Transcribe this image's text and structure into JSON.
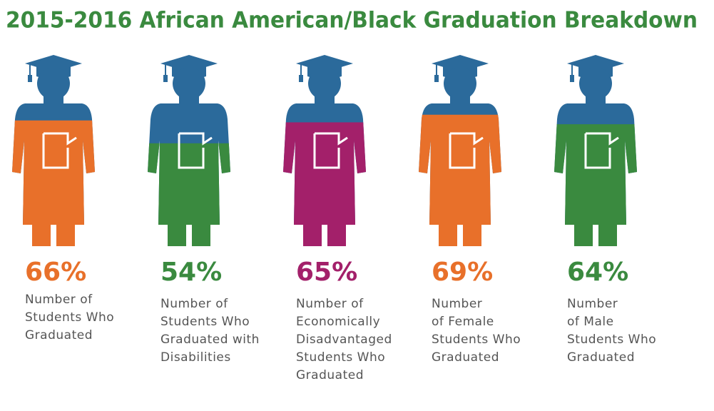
{
  "chart_data": {
    "type": "pictogram",
    "title": "2015-2016 African American/Black Graduation Breakdown",
    "categories": [
      "Number of\nStudents Who\nGraduated",
      "Number of\nStudents Who\nGraduated with\nDisabilities",
      "Number of\nEconomically\nDisadvantaged\nStudents Who\nGraduated",
      "Number\nof Female\nStudents Who\nGraduated",
      "Number\nof Male\nStudents Who\nGraduated"
    ],
    "values": [
      66,
      54,
      65,
      69,
      64
    ],
    "value_labels": [
      "66%",
      "54%",
      "65%",
      "69%",
      "64%"
    ],
    "colors": [
      "#e8702a",
      "#3a8a3f",
      "#a3206a",
      "#e8702a",
      "#3a8a3f"
    ],
    "base_color": "#2b6a9b",
    "ylim": [
      0,
      100
    ]
  }
}
